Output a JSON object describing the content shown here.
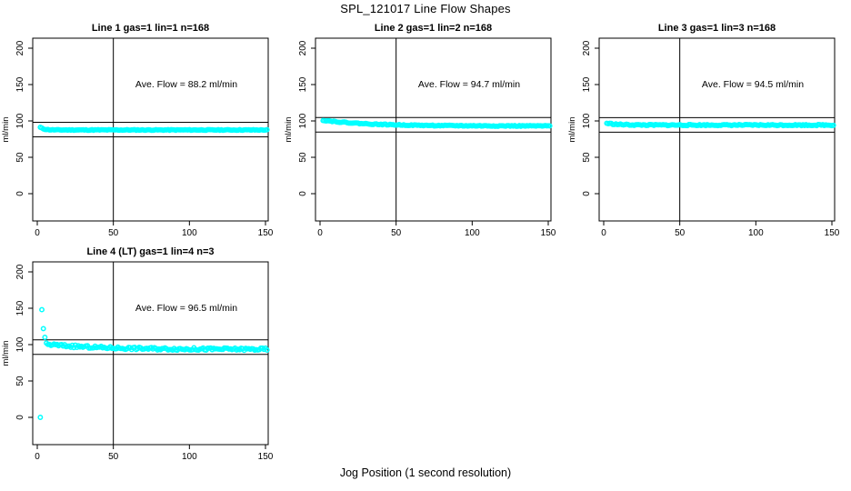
{
  "title": "SPL_121017  Line Flow Shapes",
  "xlabel": "Jog Position (1 second resolution)",
  "colors": {
    "points": "#00FFFF",
    "axis": "#000000",
    "background": "#FFFFFF"
  },
  "chart_data": [
    {
      "type": "scatter",
      "title": "Line 1 gas=1 lin=1 n=168",
      "annotation": "Ave. Flow =  88.2  ml/min",
      "avg_flow": 88.2,
      "ylabel": "ml/min",
      "x_ticks": [
        0,
        50,
        100,
        150
      ],
      "y_ticks": [
        0,
        50,
        100,
        150,
        200
      ],
      "xlim": [
        -3,
        152
      ],
      "ylim": [
        -37.5,
        213.75
      ],
      "grid": false,
      "vline_x": 50,
      "hlines": [
        98.2,
        78.2
      ],
      "series": {
        "x_start": 2,
        "x_end": 151,
        "step": 1,
        "y_settle": 87.6,
        "y_jump": 3.5,
        "tau": 2.5,
        "jitter": 0.5,
        "seed": 11
      },
      "outliers": []
    },
    {
      "type": "scatter",
      "title": "Line 2 gas=1 lin=2 n=168",
      "annotation": "Ave. Flow =  94.7  ml/min",
      "avg_flow": 94.7,
      "ylabel": "ml/min",
      "x_ticks": [
        0,
        50,
        100,
        150
      ],
      "y_ticks": [
        0,
        50,
        100,
        150,
        200
      ],
      "xlim": [
        -3,
        152
      ],
      "ylim": [
        -37.5,
        213.75
      ],
      "grid": false,
      "vline_x": 50,
      "hlines": [
        104.7,
        84.7
      ],
      "series": {
        "x_start": 2,
        "x_end": 151,
        "step": 1,
        "y_settle": 93.0,
        "y_jump": 8.0,
        "tau": 30,
        "jitter": 0.6,
        "seed": 22
      },
      "outliers": []
    },
    {
      "type": "scatter",
      "title": "Line 3 gas=1 lin=3 n=168",
      "annotation": "Ave. Flow =  94.5  ml/min",
      "avg_flow": 94.5,
      "ylabel": "ml/min",
      "x_ticks": [
        0,
        50,
        100,
        150
      ],
      "y_ticks": [
        0,
        50,
        100,
        150,
        200
      ],
      "xlim": [
        -3,
        152
      ],
      "ylim": [
        -37.5,
        213.75
      ],
      "grid": false,
      "vline_x": 50,
      "hlines": [
        104.5,
        84.5
      ],
      "series": {
        "x_start": 2,
        "x_end": 151,
        "step": 1,
        "y_settle": 94.3,
        "y_jump": 2.5,
        "tau": 8,
        "jitter": 0.8,
        "seed": 33
      },
      "outliers": []
    },
    {
      "type": "scatter",
      "title": "Line 4 (LT) gas=1 lin=4 n=3",
      "annotation": "Ave. Flow =  96.5  ml/min",
      "avg_flow": 96.5,
      "ylabel": "ml/min",
      "x_ticks": [
        0,
        50,
        100,
        150
      ],
      "y_ticks": [
        0,
        50,
        100,
        150,
        200
      ],
      "xlim": [
        -3,
        152
      ],
      "ylim": [
        -37.5,
        213.75
      ],
      "grid": false,
      "vline_x": 50,
      "hlines": [
        106.5,
        86.5
      ],
      "series": {
        "x_start": 6,
        "x_end": 151,
        "step": 1,
        "y_settle": 93.5,
        "y_jump": 7.0,
        "tau": 35,
        "jitter": 1.8,
        "seed": 44
      },
      "outliers": [
        [
          2,
          0
        ],
        [
          3,
          148
        ],
        [
          4,
          122
        ],
        [
          5,
          110
        ]
      ]
    }
  ]
}
